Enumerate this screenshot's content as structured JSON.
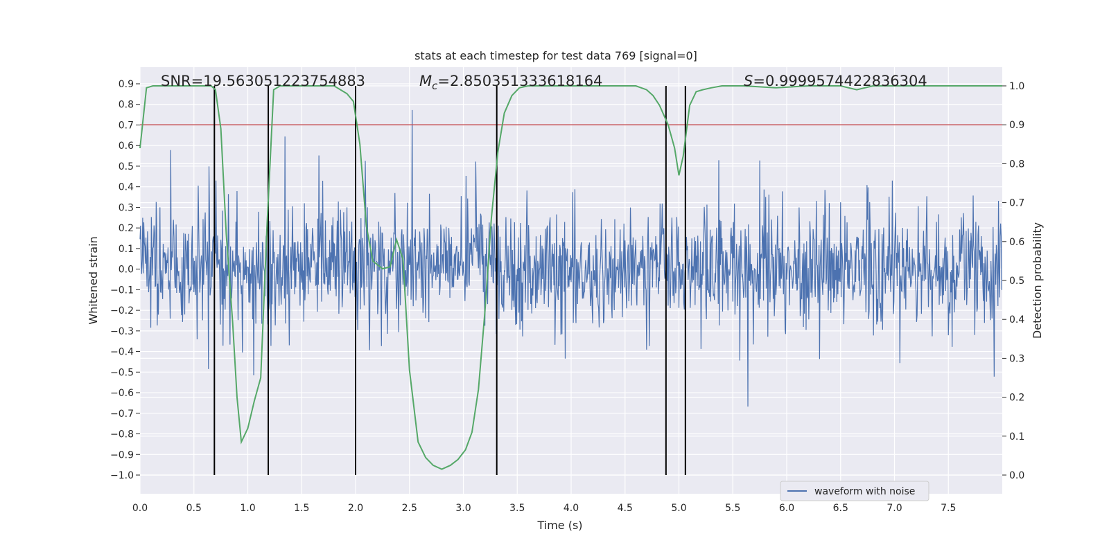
{
  "chart_data": {
    "type": "line",
    "title": "stats at each timestep for test data 769 [signal=0]",
    "xlabel": "Time (s)",
    "ylabel": "Whitened strain",
    "y2label": "Detection probability",
    "xlim": [
      0.0,
      8.0
    ],
    "ylim": [
      -1.0,
      0.9
    ],
    "y2lim": [
      0.0,
      1.0
    ],
    "x_ticks": [
      "0.0",
      "0.5",
      "1.0",
      "1.5",
      "2.0",
      "2.5",
      "3.0",
      "3.5",
      "4.0",
      "4.5",
      "5.0",
      "5.5",
      "6.0",
      "6.5",
      "7.0",
      "7.5"
    ],
    "y_ticks": [
      "0.9",
      "0.8",
      "0.7",
      "0.6",
      "0.5",
      "0.4",
      "0.3",
      "0.2",
      "0.1",
      "0.0",
      "−0.1",
      "−0.2",
      "−0.3",
      "−0.4",
      "−0.5",
      "−0.6",
      "−0.7",
      "−0.8",
      "−0.9",
      "−1.0"
    ],
    "y2_ticks": [
      "1.0",
      "0.9",
      "0.8",
      "0.7",
      "0.6",
      "0.5",
      "0.4",
      "0.3",
      "0.2",
      "0.1",
      "0.0"
    ],
    "grid": true,
    "legend": {
      "position": "bottom-right",
      "entries": [
        "waveform with noise"
      ]
    },
    "annotations": {
      "snr": "SNR=19.563051223754883",
      "mc_symbol": "M",
      "mc_sub": "c",
      "mc_value": "=2.850351333618164",
      "s_symbol": "S",
      "s_value": "=0.9999574422836304"
    },
    "waveform": {
      "name": "waveform with noise",
      "color": "#4c72b0",
      "sample_rate_hz": 200,
      "envelope_main": 0.24,
      "envelope_spike": 0.5
    },
    "threshold": {
      "value": 0.9,
      "axis": "y2",
      "color": "#c44e52"
    },
    "detection_probability": {
      "color": "#55a868",
      "x": [
        0.0,
        0.06,
        0.12,
        0.2,
        0.3,
        0.4,
        0.5,
        0.6,
        0.66,
        0.7,
        0.75,
        0.8,
        0.86,
        0.9,
        0.94,
        1.0,
        1.06,
        1.12,
        1.18,
        1.24,
        1.3,
        1.4,
        1.5,
        1.6,
        1.7,
        1.8,
        1.86,
        1.92,
        1.98,
        2.04,
        2.1,
        2.16,
        2.25,
        2.32,
        2.38,
        2.44,
        2.5,
        2.58,
        2.65,
        2.72,
        2.8,
        2.88,
        2.95,
        3.02,
        3.08,
        3.14,
        3.2,
        3.26,
        3.32,
        3.38,
        3.45,
        3.52,
        3.6,
        3.8,
        4.0,
        4.2,
        4.4,
        4.6,
        4.7,
        4.76,
        4.82,
        4.9,
        4.96,
        5.0,
        5.04,
        5.1,
        5.16,
        5.22,
        5.3,
        5.4,
        5.6,
        5.9,
        6.2,
        6.5,
        6.65,
        6.8,
        7.0,
        7.5,
        8.0
      ],
      "y": [
        0.84,
        0.995,
        1.0,
        1.0,
        1.0,
        1.0,
        1.0,
        1.0,
        1.0,
        0.99,
        0.89,
        0.62,
        0.39,
        0.2,
        0.085,
        0.12,
        0.19,
        0.25,
        0.65,
        0.99,
        1.0,
        1.0,
        1.0,
        1.0,
        1.0,
        1.0,
        0.99,
        0.98,
        0.96,
        0.85,
        0.64,
        0.55,
        0.53,
        0.535,
        0.605,
        0.555,
        0.27,
        0.085,
        0.045,
        0.025,
        0.015,
        0.025,
        0.04,
        0.065,
        0.11,
        0.22,
        0.42,
        0.66,
        0.83,
        0.93,
        0.975,
        0.995,
        1.0,
        1.0,
        1.0,
        1.0,
        1.0,
        1.0,
        0.99,
        0.975,
        0.95,
        0.9,
        0.84,
        0.77,
        0.82,
        0.95,
        0.985,
        0.99,
        0.995,
        1.0,
        1.0,
        0.995,
        1.0,
        1.0,
        0.99,
        1.0,
        1.0,
        1.0,
        1.0
      ]
    },
    "vertical_lines": {
      "color": "#000000",
      "x": [
        0.69,
        1.19,
        2.0,
        3.31,
        4.88,
        5.06
      ]
    }
  }
}
